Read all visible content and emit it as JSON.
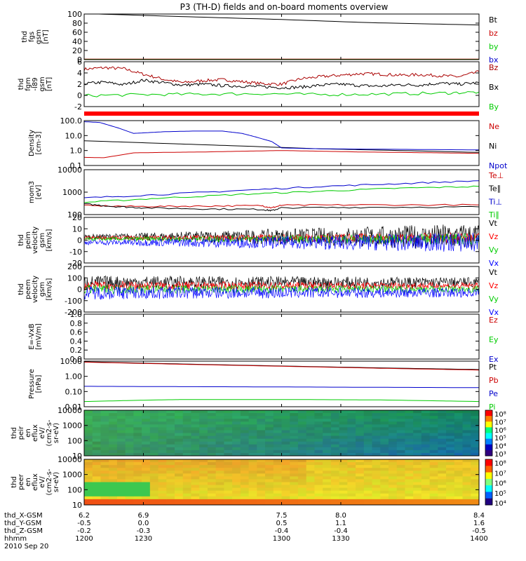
{
  "title": "P3 (TH-D) fields and on-board moments overview",
  "chart_data": [
    {
      "type": "line",
      "ylabel": "thd\nfgs\ngsm\n[nT]",
      "yticks": [
        "100",
        "80",
        "60",
        "40",
        "20",
        "0"
      ],
      "ylim": [
        0,
        100
      ],
      "legend": [
        "Bt",
        "bz",
        "by",
        "bx"
      ],
      "series": [
        {
          "name": "Bt",
          "color": "#000000",
          "x": [
            1200,
            1245,
            1300,
            1345,
            1400
          ],
          "y": [
            101,
            95,
            88,
            81,
            76
          ]
        },
        {
          "name": "bz",
          "color": "#cc0000",
          "x": [
            1200,
            1400
          ],
          "y": [
            1,
            1
          ]
        },
        {
          "name": "by",
          "color": "#00cc00",
          "x": [
            1200,
            1400
          ],
          "y": [
            0.5,
            0.5
          ]
        },
        {
          "name": "bx",
          "color": "#0000cc",
          "x": [
            1200,
            1400
          ],
          "y": [
            0,
            0
          ]
        }
      ]
    },
    {
      "type": "line",
      "ylabel": "thd\nfgm\n-l89\ngsm\n[nT]",
      "yticks": [
        "6",
        "4",
        "2",
        "0",
        "-2"
      ],
      "ylim": [
        -3,
        6
      ],
      "legend": [
        "Bz",
        "Bx",
        "By"
      ],
      "series": [
        {
          "name": "Bz",
          "color": "#aa0000",
          "x": [
            1200,
            1210,
            1220,
            1230,
            1240,
            1250,
            1260,
            1270,
            1280,
            1290,
            1300,
            1310,
            1320,
            1330,
            1340,
            1350,
            1360,
            1370,
            1380,
            1390,
            1400
          ],
          "y": [
            4.5,
            4.8,
            4.6,
            3.5,
            2.5,
            1.8,
            2.2,
            2.4,
            2.0,
            1.6,
            1.5,
            2.6,
            3.0,
            3.3,
            3.6,
            3.5,
            3.3,
            3.4,
            3.2,
            3.0,
            4.0
          ]
        },
        {
          "name": "Bx",
          "color": "#000000",
          "x": [
            1200,
            1210,
            1220,
            1230,
            1240,
            1250,
            1260,
            1270,
            1280,
            1290,
            1300,
            1310,
            1320,
            1330,
            1340,
            1350,
            1360,
            1370,
            1380,
            1390,
            1400
          ],
          "y": [
            1.6,
            1.9,
            1.4,
            2.3,
            1.8,
            1.3,
            1.5,
            1.2,
            1.1,
            1.0,
            0.8,
            0.9,
            1.3,
            1.5,
            1.2,
            1.1,
            1.4,
            1.3,
            1.7,
            1.5,
            1.8
          ]
        },
        {
          "name": "By",
          "color": "#00cc00",
          "x": [
            1200,
            1230,
            1260,
            1290,
            1320,
            1350,
            1380,
            1400
          ],
          "y": [
            -0.8,
            -0.6,
            -0.5,
            -0.4,
            -0.6,
            -0.5,
            -0.3,
            -0.1
          ]
        }
      ]
    },
    {
      "type": "line",
      "scale": "log",
      "ylabel": "Density\n[cm-3]",
      "yticks": [
        "100.0",
        "10.0",
        "1.0",
        "0.1"
      ],
      "ylim": [
        0.1,
        100
      ],
      "legend": [
        "Ne",
        "Ni",
        "Npot"
      ],
      "series": [
        {
          "name": "Ne",
          "color": "#cc0000",
          "x": [
            1200,
            1210,
            1225,
            1240,
            1260,
            1280,
            1300,
            1320,
            1340,
            1360,
            1380,
            1400
          ],
          "y": [
            0.35,
            0.33,
            0.7,
            0.75,
            0.8,
            0.9,
            1.0,
            0.9,
            0.8,
            0.75,
            0.7,
            0.65
          ]
        },
        {
          "name": "Ni",
          "color": "#000000",
          "x": [
            1200,
            1240,
            1280,
            1320,
            1360,
            1400
          ],
          "y": [
            4.5,
            3.0,
            2.0,
            1.3,
            1.0,
            0.75
          ]
        },
        {
          "name": "Npot",
          "color": "#0000cc",
          "x": [
            1200,
            1208,
            1218,
            1225,
            1240,
            1255,
            1270,
            1280,
            1287,
            1295,
            1300,
            1320,
            1360,
            1400
          ],
          "y": [
            85,
            75,
            30,
            14,
            18,
            20,
            20,
            14,
            8,
            4,
            1.5,
            1.3,
            1.2,
            1.1
          ]
        }
      ]
    },
    {
      "type": "line",
      "scale": "log",
      "ylabel": "mom3\n[eV]",
      "yticks": [
        "10000",
        "1000",
        "100"
      ],
      "ylim": [
        100,
        10000
      ],
      "legend": [
        "Te⊥",
        "Te∥",
        "Ti⊥",
        "Ti∥"
      ],
      "series": [
        {
          "name": "Te⊥",
          "color": "#cc0000",
          "x": [
            1200,
            1230,
            1260,
            1290,
            1295,
            1300,
            1340,
            1400
          ],
          "y": [
            250,
            230,
            240,
            250,
            200,
            260,
            270,
            270
          ]
        },
        {
          "name": "Te∥",
          "color": "#000000",
          "x": [
            1200,
            1215,
            1230,
            1260,
            1290,
            1295,
            1300,
            1340,
            1400
          ],
          "y": [
            300,
            230,
            200,
            180,
            170,
            150,
            200,
            210,
            220
          ]
        },
        {
          "name": "Ti⊥",
          "color": "#0000cc",
          "x": [
            1200,
            1240,
            1280,
            1320,
            1360,
            1400
          ],
          "y": [
            550,
            800,
            1200,
            1800,
            2400,
            3200
          ]
        },
        {
          "name": "Ti∥",
          "color": "#00cc00",
          "x": [
            1200,
            1240,
            1280,
            1320,
            1360,
            1400
          ],
          "y": [
            350,
            550,
            800,
            1100,
            1500,
            1800
          ]
        }
      ]
    },
    {
      "type": "line",
      "ylabel": "thd\npeim\nvelocity\ngsm\n[km/s]",
      "yticks": [
        "20",
        "10",
        "0",
        "-10",
        "-20"
      ],
      "ylim": [
        -20,
        20
      ],
      "legend": [
        "Vt",
        "Vz",
        "Vy",
        "Vx"
      ],
      "noise": true,
      "series": [
        {
          "name": "Vt",
          "color": "#000000",
          "base": 3,
          "amp": [
            2,
            12
          ]
        },
        {
          "name": "Vz",
          "color": "#ff0000",
          "base": 2,
          "amp": [
            1.5,
            5
          ]
        },
        {
          "name": "Vy",
          "color": "#00cc00",
          "base": 1,
          "amp": [
            1.5,
            5
          ]
        },
        {
          "name": "Vx",
          "color": "#0000ff",
          "base": -2,
          "amp": [
            2,
            9
          ]
        }
      ]
    },
    {
      "type": "line",
      "ylabel": "thd\npeem\nvelocity\ngsm\n[km/s]",
      "yticks": [
        "200",
        "100",
        "0",
        "-100",
        "-200"
      ],
      "ylim": [
        -200,
        200
      ],
      "legend": [
        "Vt",
        "Vz",
        "Vy",
        "Vx"
      ],
      "noise": true,
      "series": [
        {
          "name": "Vt",
          "color": "#000000",
          "base": 60,
          "amp": [
            60,
            45
          ]
        },
        {
          "name": "Vz",
          "color": "#ff0000",
          "base": 30,
          "amp": [
            40,
            30
          ]
        },
        {
          "name": "Vy",
          "color": "#00cc00",
          "base": 0,
          "amp": [
            40,
            30
          ]
        },
        {
          "name": "Vx",
          "color": "#0000ff",
          "base": -30,
          "amp": [
            60,
            40
          ]
        }
      ]
    },
    {
      "type": "line",
      "ylabel": "E=-VxB\n[mV/m]",
      "yticks": [
        "1.0",
        "0.8",
        "0.6",
        "0.4",
        "0.2",
        "0.0"
      ],
      "ylim": [
        0,
        1
      ],
      "legend": [
        "Ez",
        "Ey",
        "Ex"
      ],
      "series": []
    },
    {
      "type": "line",
      "scale": "log",
      "ylabel": "Pressure\n[nPa]",
      "yticks": [
        "10.00",
        "1.00",
        "0.10",
        "0.01"
      ],
      "ylim": [
        0.01,
        10
      ],
      "legend": [
        "Pt",
        "Pb",
        "Pe",
        "Pi"
      ],
      "series": [
        {
          "name": "Pt",
          "color": "#000000",
          "x": [
            1200,
            1250,
            1300,
            1350,
            1400
          ],
          "y": [
            9.0,
            6.5,
            4.8,
            3.6,
            2.8
          ]
        },
        {
          "name": "Pb",
          "color": "#cc0000",
          "x": [
            1200,
            1250,
            1300,
            1350,
            1400
          ],
          "y": [
            8.6,
            6.2,
            4.6,
            3.4,
            2.6
          ]
        },
        {
          "name": "Pe",
          "color": "#0000cc",
          "x": [
            1200,
            1250,
            1300,
            1350,
            1400
          ],
          "y": [
            0.22,
            0.21,
            0.2,
            0.19,
            0.18
          ]
        },
        {
          "name": "Pi",
          "color": "#00cc00",
          "x": [
            1200,
            1225,
            1250,
            1300,
            1350,
            1400
          ],
          "y": [
            0.022,
            0.026,
            0.03,
            0.03,
            0.028,
            0.022
          ]
        }
      ]
    },
    {
      "type": "heatmap",
      "ylabel": "thd\npeir\nen\neflux\neV/\n(cm2-s-\nsr-eV)",
      "yticks": [
        "10000",
        "1000",
        "100",
        "10"
      ],
      "ylim": [
        10,
        20000
      ],
      "colorbar": {
        "labels": [
          "10⁸",
          "10⁷",
          "10⁶",
          "10⁵",
          "10⁴",
          "10³"
        ],
        "min_exp": 3,
        "max_exp": 8
      }
    },
    {
      "type": "heatmap",
      "ylabel": "thd\npeer\nen\neflux\neV/\n(cm2-s-\nsr-eV)",
      "yticks": [
        "10000",
        "1000",
        "100",
        "10"
      ],
      "ylim": [
        10,
        20000
      ],
      "colorbar": {
        "labels": [
          "10⁸",
          "10⁷",
          "10⁶",
          "10⁵",
          "10⁴"
        ],
        "min_exp": 4,
        "max_exp": 8
      }
    }
  ],
  "x_axis": {
    "row_labels": [
      "thd_X-GSM",
      "thd_Y-GSM",
      "thd_Z-GSM",
      "hhmm",
      "2010 Sep 20"
    ],
    "columns": [
      {
        "x": "6.2",
        "y": "-0.5",
        "z": "-0.2",
        "t": "1200",
        "time": 1200
      },
      {
        "x": "6.9",
        "y": "0.0",
        "z": "-0.3",
        "t": "1230",
        "time": 1230
      },
      {
        "x": "7.5",
        "y": "0.5",
        "z": "-0.4",
        "t": "1300",
        "time": 1300
      },
      {
        "x": "8.0",
        "y": "1.1",
        "z": "-0.4",
        "t": "1330",
        "time": 1330
      },
      {
        "x": "8.4",
        "y": "1.6",
        "z": "-0.5",
        "t": "1400",
        "time": 1400
      }
    ]
  }
}
